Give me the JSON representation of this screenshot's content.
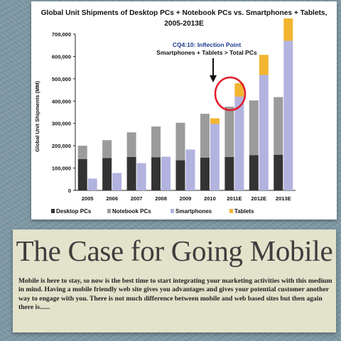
{
  "colors": {
    "desktop": "#333333",
    "notebook": "#9b9b9b",
    "smartphones": "#b3b3e0",
    "tablets": "#f2b531",
    "annotation": "#1a3c8e",
    "highlight": "#e21b2b"
  },
  "chart_data": {
    "type": "bar",
    "title": "Global Unit Shipments of Desktop PCs + Notebook PCs vs. Smartphones + Tablets, 2005-2013E",
    "title_line1": "Global Unit Shipments of Desktop PCs + Notebook PCs vs. Smartphones + Tablets,",
    "title_line2": "2005-2013E",
    "ylabel": "Global Unit Shipments (MM)",
    "xlabel": "",
    "ylim": [
      0,
      700000
    ],
    "yticks": [
      "0",
      "100,000",
      "200,000",
      "300,000",
      "400,000",
      "500,000",
      "600,000",
      "700,000"
    ],
    "ytick_values": [
      0,
      100000,
      200000,
      300000,
      400000,
      500000,
      600000,
      700000
    ],
    "categories": [
      "2005",
      "2006",
      "2007",
      "2008",
      "2009",
      "2010",
      "2011E",
      "2012E",
      "2013E"
    ],
    "groups": [
      {
        "name": "PCs",
        "stack": [
          {
            "name": "Desktop PCs",
            "values": [
              140000,
              145000,
              150000,
              148000,
              135000,
              147000,
              150000,
              158000,
              160000
            ]
          },
          {
            "name": "Notebook PCs",
            "values": [
              60000,
              80000,
              110000,
              138000,
              168000,
              196000,
              225000,
              245000,
              258000
            ]
          }
        ]
      },
      {
        "name": "Smartphones + Tablets",
        "stack": [
          {
            "name": "Smartphones",
            "values": [
              53000,
              78000,
              122000,
              151000,
              183000,
              298000,
              420000,
              517000,
              670000
            ]
          },
          {
            "name": "Tablets",
            "values": [
              0,
              0,
              0,
              0,
              0,
              25000,
              60000,
              90000,
              100000
            ]
          }
        ]
      }
    ],
    "legend": [
      "Desktop PCs",
      "Notebook PCs",
      "Smartphones",
      "Tablets"
    ],
    "legend_position": "bottom",
    "grid": false,
    "annotation": {
      "line1": "CQ4:10: Inflection Point",
      "line2": "Smartphones + Tablets > Total PCs",
      "target_category": "2011E"
    }
  },
  "article": {
    "headline": "The Case for Going Mobile",
    "body": "Mobile is here to stay, so now is the best time to start integrating your marketing activities with this medium in mind. Having a mobile friendly web site gives you advantages and gives your potential customer another way to engage with you. There is not much difference between mobile and web based sites but then again there is......"
  }
}
